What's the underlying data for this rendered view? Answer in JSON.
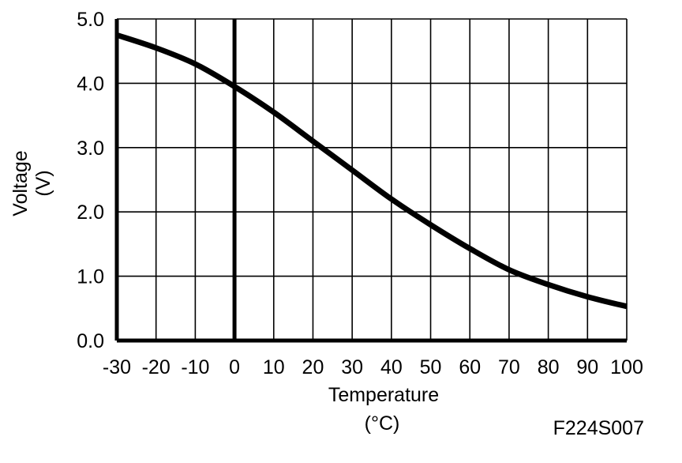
{
  "chart_data": {
    "type": "line",
    "xlabel": "Temperature",
    "xunit": "(°C)",
    "ylabel": "Voltage",
    "yunit": "(V)",
    "xlim": [
      -30,
      100
    ],
    "ylim": [
      0,
      5
    ],
    "x_ticks": [
      -30,
      -20,
      -10,
      0,
      10,
      20,
      30,
      40,
      50,
      60,
      70,
      80,
      90,
      100
    ],
    "y_ticks": [
      "0.0",
      "1.0",
      "2.0",
      "3.0",
      "4.0",
      "5.0"
    ],
    "grid": true,
    "series": [
      {
        "x": [
          -30,
          -20,
          -10,
          0,
          10,
          20,
          30,
          40,
          50,
          60,
          70,
          80,
          90,
          100
        ],
        "values": [
          4.75,
          4.55,
          4.3,
          3.95,
          3.55,
          3.1,
          2.65,
          2.2,
          1.8,
          1.43,
          1.1,
          0.87,
          0.68,
          0.53
        ]
      }
    ]
  },
  "figure_id": "F224S007",
  "colors": {
    "line": "#000000",
    "grid": "#000000",
    "background": "#ffffff"
  }
}
